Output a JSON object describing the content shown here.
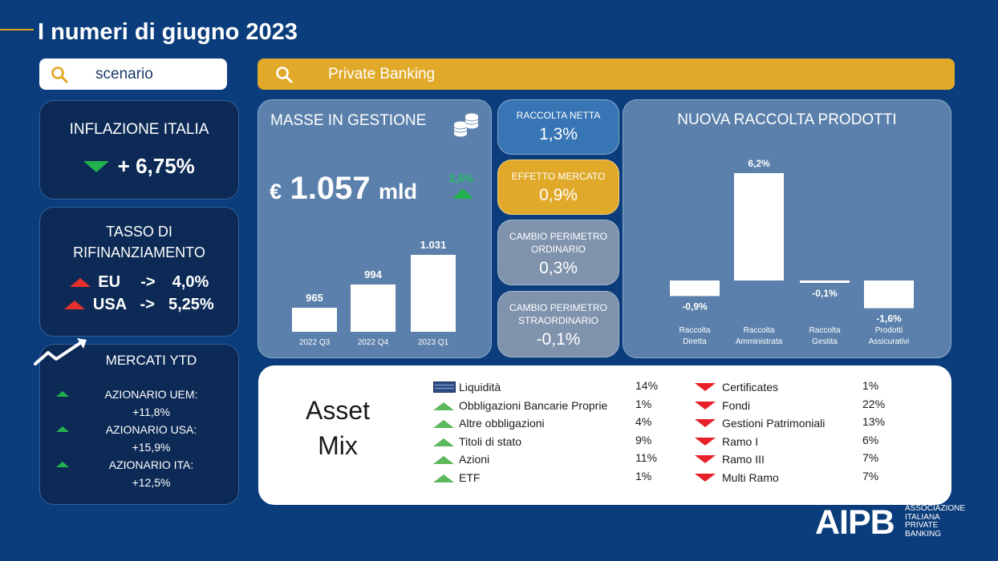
{
  "page": {
    "title": "I numeri di giugno 2023"
  },
  "search_left": {
    "value": "scenario",
    "icon": "search-icon"
  },
  "search_main": {
    "value": "Private Banking",
    "icon": "search-icon"
  },
  "inflazione": {
    "label": "INFLAZIONE ITALIA",
    "value": "+ 6,75%",
    "trend": "down"
  },
  "tasso": {
    "label_line1": "TASSO DI",
    "label_line2": "RIFINANZIAMENTO",
    "rows": [
      {
        "region": "EU",
        "arrow": "->",
        "value": "4,0%"
      },
      {
        "region": "USA",
        "arrow": "->",
        "value": "5,25%"
      }
    ]
  },
  "mercati": {
    "label": "MERCATI YTD",
    "items": [
      {
        "name": "AZIONARIO UEM:",
        "value": "+11,8%"
      },
      {
        "name": "AZIONARIO USA:",
        "value": "+15,9%"
      },
      {
        "name": "AZIONARIO ITA:",
        "value": "+12,5%"
      }
    ]
  },
  "masse": {
    "label": "MASSE IN GESTIONE",
    "currency": "€",
    "amount": "1.057",
    "unit": "mld",
    "change": "2,5%"
  },
  "pills": [
    {
      "label": "RACCOLTA NETTA",
      "value": "1,3%"
    },
    {
      "label": "EFFETTO MERCATO",
      "value": "0,9%"
    },
    {
      "label": "CAMBIO PERIMETRO ORDINARIO",
      "value": "0,3%"
    },
    {
      "label": "CAMBIO PERIMETRO STRAORDINARIO",
      "value": "-0,1%"
    }
  ],
  "nuova": {
    "label": "NUOVA RACCOLTA PRODOTTI"
  },
  "chart_data": [
    {
      "type": "bar",
      "title": "",
      "categories": [
        "2022 Q3",
        "2022 Q4",
        "2023 Q1"
      ],
      "values": [
        965,
        994,
        1031
      ],
      "value_labels": [
        "965",
        "994",
        "1.031"
      ],
      "ylim": [
        935,
        1031
      ]
    },
    {
      "type": "bar",
      "title": "NUOVA RACCOLTA PRODOTTI",
      "categories": [
        "Raccolta Diretta",
        "Raccolta Amministrata",
        "Raccolta Gestita",
        "Prodotti Assicurativi"
      ],
      "category_lines": [
        [
          "Raccolta",
          "Diretta"
        ],
        [
          "Raccolta",
          "Amministrata"
        ],
        [
          "Raccolta",
          "Gestita"
        ],
        [
          "Prodotti",
          "Assicurativi"
        ]
      ],
      "values": [
        -0.9,
        6.2,
        -0.1,
        -1.6
      ],
      "value_labels": [
        "-0,9%",
        "6,2%",
        "-0,1%",
        "-1,6%"
      ],
      "ylim": [
        -1.6,
        6.2
      ]
    }
  ],
  "asset_mix": {
    "title_line1": "Asset",
    "title_line2": "Mix",
    "left": [
      {
        "name": "Liquidità",
        "value": "14%",
        "icon": "liquidity-icon"
      },
      {
        "name": "Obbligazioni Bancarie Proprie",
        "value": "1%",
        "icon": "up-arrow-icon"
      },
      {
        "name": "Altre obbligazioni",
        "value": "4%",
        "icon": "up-arrow-icon"
      },
      {
        "name": "Titoli di stato",
        "value": "9%",
        "icon": "up-arrow-icon"
      },
      {
        "name": "Azioni",
        "value": "11%",
        "icon": "up-arrow-icon"
      },
      {
        "name": "ETF",
        "value": "1%",
        "icon": "up-arrow-icon"
      }
    ],
    "right": [
      {
        "name": "Certificates",
        "value": "1%"
      },
      {
        "name": "Fondi",
        "value": "22%"
      },
      {
        "name": "Gestioni Patrimoniali",
        "value": "13%"
      },
      {
        "name": "Ramo I",
        "value": "6%"
      },
      {
        "name": "Ramo III",
        "value": "7%"
      },
      {
        "name": "Multi Ramo",
        "value": "7%"
      }
    ]
  },
  "logo": {
    "mark": "AIPB",
    "lines": [
      "ASSOCIAZIONE",
      "ITALIANA",
      "PRIVATE",
      "BANKING"
    ]
  }
}
